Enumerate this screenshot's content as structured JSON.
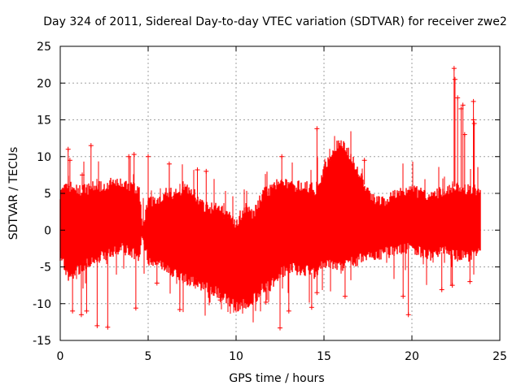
{
  "chart_data": {
    "type": "scatter",
    "title": "Day 324 of 2011, Sidereal Day-to-day VTEC variation (SDTVAR) for receiver zwe2",
    "xlabel": "GPS time / hours",
    "ylabel": "SDTVAR / TECUs",
    "xlim": [
      0,
      25
    ],
    "ylim": [
      -15,
      25
    ],
    "xticks": [
      0,
      5,
      10,
      15,
      20,
      25
    ],
    "yticks": [
      -15,
      -10,
      -5,
      0,
      5,
      10,
      15,
      20,
      25
    ],
    "grid": true,
    "marker": "+",
    "series": [
      {
        "name": "SDTVAR",
        "color": "#ff0000",
        "envelope": {
          "x": [
            0.0,
            0.5,
            1.0,
            1.5,
            2.0,
            2.5,
            3.0,
            3.5,
            4.0,
            4.5,
            4.7,
            5.0,
            5.5,
            6.0,
            6.5,
            7.0,
            7.5,
            8.0,
            8.5,
            9.0,
            9.5,
            10.0,
            10.5,
            11.0,
            11.5,
            12.0,
            12.5,
            13.0,
            13.5,
            14.0,
            14.5,
            15.0,
            15.5,
            16.0,
            16.5,
            17.0,
            17.5,
            18.0,
            18.5,
            19.0,
            19.5,
            20.0,
            20.5,
            21.0,
            21.5,
            22.0,
            22.5,
            23.0,
            23.5,
            23.9
          ],
          "upper": [
            5.0,
            6.0,
            5.5,
            5.5,
            6.0,
            6.0,
            6.5,
            6.5,
            6.0,
            5.5,
            0.5,
            4.0,
            4.0,
            5.0,
            5.0,
            5.5,
            5.5,
            3.5,
            3.0,
            3.0,
            2.0,
            1.0,
            3.0,
            2.0,
            5.0,
            5.5,
            7.0,
            6.0,
            6.0,
            6.0,
            5.5,
            8.0,
            11.0,
            12.0,
            10.0,
            8.0,
            5.0,
            4.0,
            4.0,
            5.0,
            5.5,
            5.5,
            5.0,
            4.5,
            5.0,
            5.5,
            6.0,
            5.5,
            5.5,
            5.0
          ],
          "lower": [
            -3.5,
            -6.5,
            -5.5,
            -4.5,
            -4.0,
            -3.5,
            -3.0,
            -2.5,
            -3.0,
            -3.5,
            -0.5,
            -4.0,
            -4.5,
            -5.0,
            -6.0,
            -6.5,
            -7.0,
            -7.5,
            -8.0,
            -8.5,
            -9.5,
            -10.5,
            -10.0,
            -9.5,
            -8.0,
            -7.5,
            -6.0,
            -5.0,
            -5.5,
            -5.5,
            -6.0,
            -4.5,
            -5.0,
            -5.0,
            -4.5,
            -4.0,
            -3.5,
            -3.5,
            -3.0,
            -3.0,
            -2.5,
            -2.5,
            -3.0,
            -3.5,
            -3.0,
            -3.0,
            -3.5,
            -3.5,
            -3.5,
            -3.0
          ]
        },
        "outliers": [
          {
            "x": 0.45,
            "y": 11.0
          },
          {
            "x": 0.55,
            "y": 9.5
          },
          {
            "x": 1.75,
            "y": 11.5
          },
          {
            "x": 1.25,
            "y": 7.5
          },
          {
            "x": 4.2,
            "y": 10.3
          },
          {
            "x": 3.9,
            "y": 10.0
          },
          {
            "x": 5.0,
            "y": 10.0
          },
          {
            "x": 6.2,
            "y": 9.0
          },
          {
            "x": 7.8,
            "y": 8.2
          },
          {
            "x": 8.3,
            "y": 8.0
          },
          {
            "x": 12.6,
            "y": 10.0
          },
          {
            "x": 14.6,
            "y": 13.8
          },
          {
            "x": 17.3,
            "y": 9.5
          },
          {
            "x": 22.4,
            "y": 22.0
          },
          {
            "x": 22.45,
            "y": 20.5
          },
          {
            "x": 22.6,
            "y": 18.0
          },
          {
            "x": 22.9,
            "y": 17.0
          },
          {
            "x": 23.5,
            "y": 17.5
          },
          {
            "x": 23.5,
            "y": 15.0
          },
          {
            "x": 23.55,
            "y": 14.5
          },
          {
            "x": 22.8,
            "y": 16.5
          },
          {
            "x": 23.0,
            "y": 13.0
          },
          {
            "x": 0.7,
            "y": -11.0
          },
          {
            "x": 1.2,
            "y": -11.5
          },
          {
            "x": 1.5,
            "y": -11.0
          },
          {
            "x": 2.1,
            "y": -13.0
          },
          {
            "x": 2.7,
            "y": -13.2
          },
          {
            "x": 4.3,
            "y": -10.6
          },
          {
            "x": 6.8,
            "y": -10.8
          },
          {
            "x": 9.1,
            "y": -9.5
          },
          {
            "x": 11.7,
            "y": -9.8
          },
          {
            "x": 12.5,
            "y": -13.3
          },
          {
            "x": 13.0,
            "y": -11.0
          },
          {
            "x": 14.3,
            "y": -10.5
          },
          {
            "x": 14.6,
            "y": -8.5
          },
          {
            "x": 16.2,
            "y": -9.0
          },
          {
            "x": 19.8,
            "y": -11.5
          },
          {
            "x": 19.5,
            "y": -9.0
          },
          {
            "x": 21.7,
            "y": -8.1
          },
          {
            "x": 22.3,
            "y": -7.5
          },
          {
            "x": 23.3,
            "y": -7.0
          },
          {
            "x": 5.5,
            "y": -7.2
          }
        ]
      }
    ]
  }
}
